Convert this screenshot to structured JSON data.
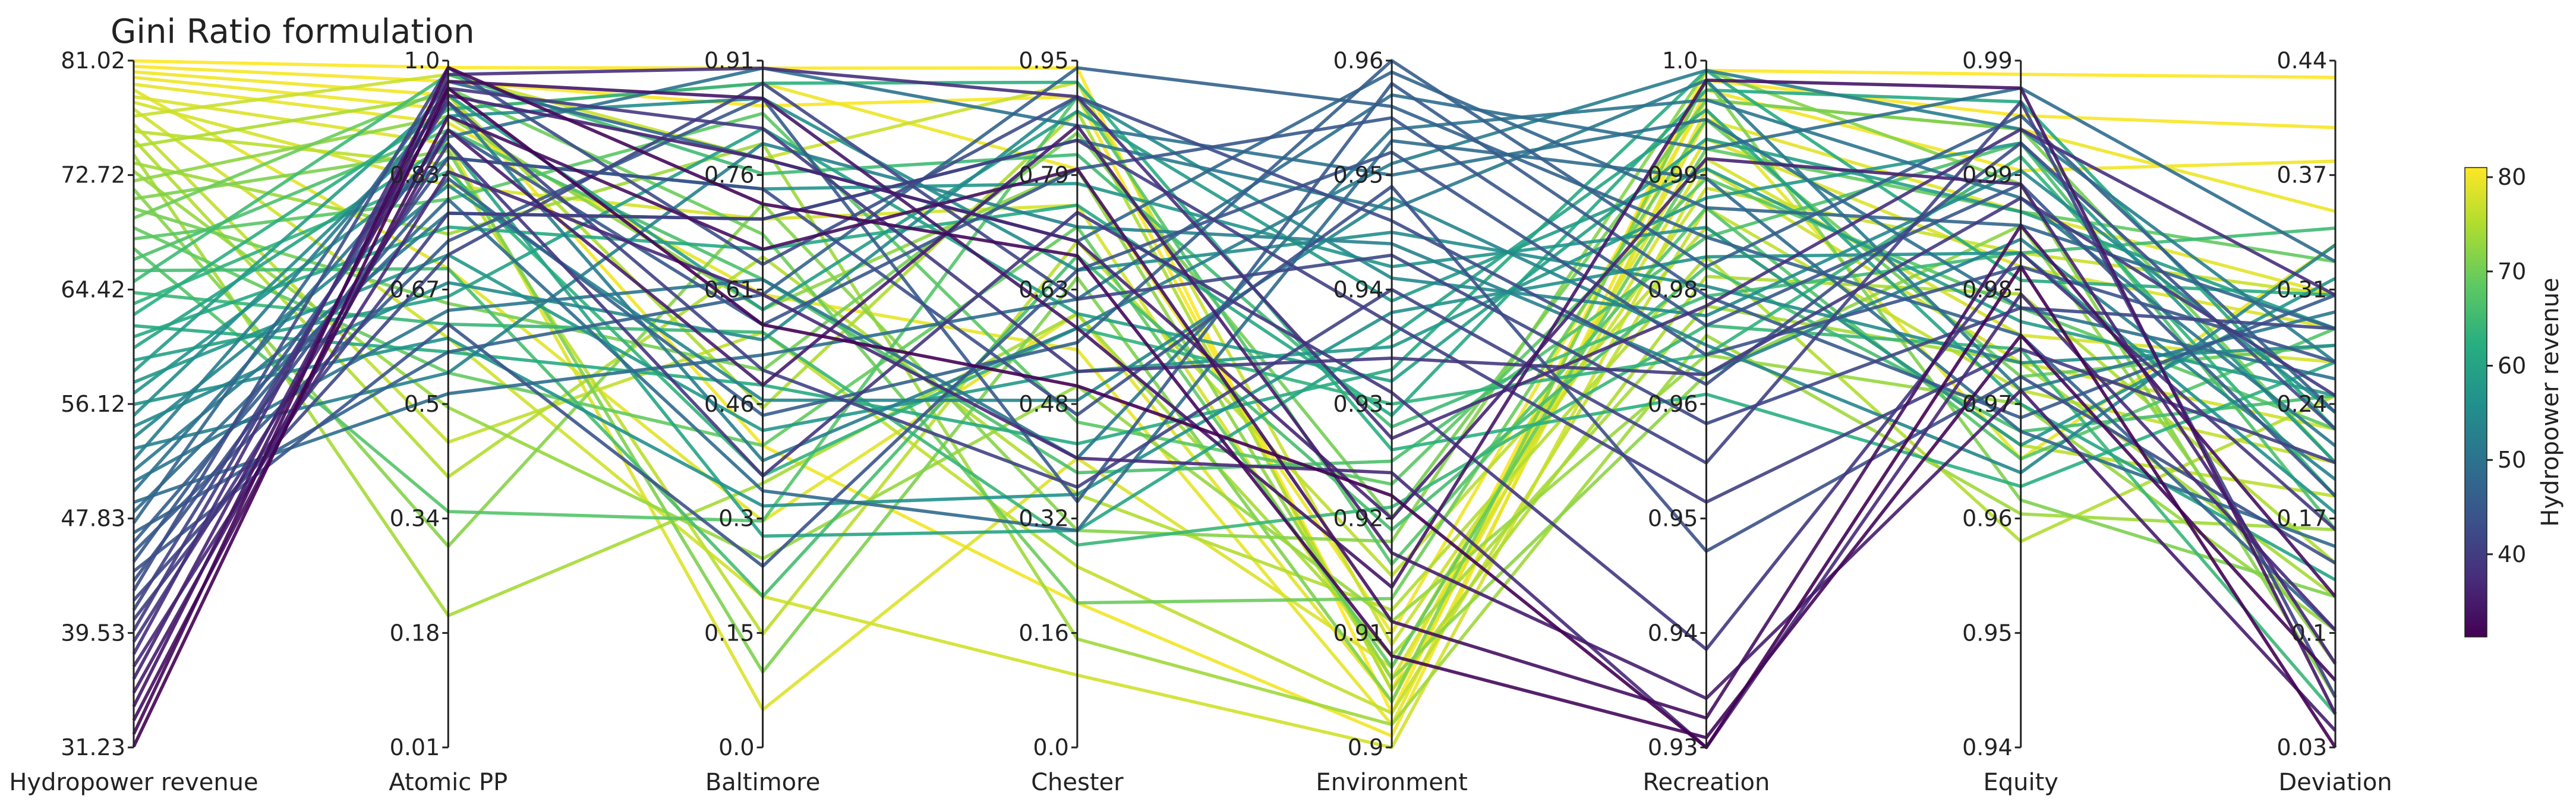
{
  "chart_data": {
    "type": "parallel_coordinates",
    "title": "Gini Ratio formulation",
    "axes": [
      {
        "name": "Hydropower revenue",
        "ticks": [
          "81.02",
          "72.72",
          "64.42",
          "56.12",
          "47.83",
          "39.53",
          "31.23"
        ],
        "range": [
          31.23,
          81.02
        ]
      },
      {
        "name": "Atomic PP",
        "ticks": [
          "1.0",
          "0.83",
          "0.67",
          "0.5",
          "0.34",
          "0.18",
          "0.01"
        ],
        "range": [
          0.01,
          1.0
        ]
      },
      {
        "name": "Baltimore",
        "ticks": [
          "0.91",
          "0.76",
          "0.61",
          "0.46",
          "0.3",
          "0.15",
          "0.0"
        ],
        "range": [
          0.0,
          0.91
        ]
      },
      {
        "name": "Chester",
        "ticks": [
          "0.95",
          "0.79",
          "0.63",
          "0.48",
          "0.32",
          "0.16",
          "0.0"
        ],
        "range": [
          0.0,
          0.95
        ]
      },
      {
        "name": "Environment",
        "ticks": [
          "0.96",
          "0.95",
          "0.94",
          "0.93",
          "0.92",
          "0.91",
          "0.9"
        ],
        "range": [
          0.9,
          0.96
        ]
      },
      {
        "name": "Recreation",
        "ticks": [
          "1.0",
          "0.99",
          "0.98",
          "0.96",
          "0.95",
          "0.94",
          "0.93"
        ],
        "range": [
          0.93,
          1.0
        ]
      },
      {
        "name": "Equity",
        "ticks": [
          "0.99",
          "0.99",
          "0.98",
          "0.97",
          "0.96",
          "0.95",
          "0.94"
        ],
        "range": [
          0.94,
          0.99
        ]
      },
      {
        "name": "Deviation",
        "ticks": [
          "0.44",
          "0.37",
          "0.31",
          "0.24",
          "0.17",
          "0.1",
          "0.03"
        ],
        "range": [
          0.03,
          0.44
        ]
      }
    ],
    "colorbar": {
      "label": "Hydropower revenue",
      "colormap": "viridis",
      "range": [
        31.23,
        81.02
      ],
      "ticks": [
        "40",
        "50",
        "60",
        "70",
        "80"
      ]
    },
    "series": [
      {
        "values": [
          81.0,
          0.99,
          0.9,
          0.94,
          0.903,
          0.999,
          0.989,
          0.43
        ]
      },
      {
        "values": [
          80.6,
          0.97,
          0.85,
          0.9,
          0.905,
          0.998,
          0.986,
          0.4
        ]
      },
      {
        "values": [
          80.2,
          0.95,
          0.4,
          0.2,
          0.901,
          0.997,
          0.982,
          0.38
        ]
      },
      {
        "values": [
          79.8,
          0.93,
          0.88,
          0.8,
          0.91,
          0.996,
          0.985,
          0.35
        ]
      },
      {
        "values": [
          79.3,
          0.91,
          0.6,
          0.55,
          0.902,
          0.995,
          0.961,
          0.33
        ]
      },
      {
        "values": [
          78.9,
          0.7,
          0.3,
          0.6,
          0.904,
          0.994,
          0.979,
          0.3
        ]
      },
      {
        "values": [
          78.4,
          0.88,
          0.05,
          0.4,
          0.907,
          0.992,
          0.975,
          0.28
        ]
      },
      {
        "values": [
          78.0,
          0.82,
          0.7,
          0.75,
          0.906,
          0.99,
          0.97,
          0.26
        ]
      },
      {
        "values": [
          77.5,
          0.6,
          0.2,
          0.1,
          0.9,
          0.989,
          0.968,
          0.22
        ]
      },
      {
        "values": [
          77.0,
          0.98,
          0.78,
          0.92,
          0.909,
          0.987,
          0.976,
          0.3
        ]
      },
      {
        "values": [
          76.4,
          0.45,
          0.55,
          0.25,
          0.903,
          0.985,
          0.966,
          0.2
        ]
      },
      {
        "values": [
          75.9,
          0.85,
          0.15,
          0.7,
          0.915,
          0.983,
          0.962,
          0.18
        ]
      },
      {
        "values": [
          75.3,
          0.4,
          0.65,
          0.35,
          0.912,
          0.98,
          0.955,
          0.24
        ]
      },
      {
        "values": [
          74.8,
          0.95,
          0.45,
          0.88,
          0.905,
          0.978,
          0.973,
          0.14
        ]
      },
      {
        "values": [
          74.2,
          0.2,
          0.35,
          0.6,
          0.908,
          0.975,
          0.968,
          0.12
        ]
      },
      {
        "values": [
          73.6,
          0.75,
          0.8,
          0.15,
          0.902,
          0.972,
          0.957,
          0.16
        ]
      },
      {
        "values": [
          73.0,
          0.5,
          0.25,
          0.5,
          0.911,
          0.97,
          0.965,
          0.1
        ]
      },
      {
        "values": [
          72.3,
          0.92,
          0.58,
          0.8,
          0.906,
          0.968,
          0.978,
          0.08
        ]
      },
      {
        "values": [
          71.7,
          0.3,
          0.72,
          0.3,
          0.918,
          0.999,
          0.981,
          0.06
        ]
      },
      {
        "values": [
          71.0,
          0.87,
          0.1,
          0.65,
          0.904,
          0.998,
          0.958,
          0.12
        ]
      },
      {
        "values": [
          70.3,
          0.65,
          0.5,
          0.85,
          0.92,
          0.996,
          0.985,
          0.2
        ]
      },
      {
        "values": [
          69.6,
          0.96,
          0.68,
          0.2,
          0.913,
          0.994,
          0.967,
          0.27
        ]
      },
      {
        "values": [
          68.9,
          0.55,
          0.4,
          0.72,
          0.907,
          0.991,
          0.979,
          0.32
        ]
      },
      {
        "values": [
          68.1,
          0.8,
          0.84,
          0.45,
          0.923,
          0.988,
          0.972,
          0.22
        ]
      },
      {
        "values": [
          67.4,
          0.35,
          0.3,
          0.9,
          0.916,
          0.985,
          0.961,
          0.28
        ]
      },
      {
        "values": [
          66.6,
          0.9,
          0.62,
          0.38,
          0.925,
          0.982,
          0.984,
          0.16
        ]
      },
      {
        "values": [
          65.8,
          0.7,
          0.2,
          0.68,
          0.919,
          0.979,
          0.963,
          0.24
        ]
      },
      {
        "values": [
          65.0,
          0.98,
          0.76,
          0.82,
          0.928,
          0.976,
          0.976,
          0.34
        ]
      },
      {
        "values": [
          64.2,
          0.62,
          0.55,
          0.28,
          0.921,
          0.973,
          0.969,
          0.05
        ]
      },
      {
        "values": [
          63.4,
          0.84,
          0.36,
          0.58,
          0.93,
          0.97,
          0.983,
          0.18
        ]
      },
      {
        "values": [
          62.6,
          0.93,
          0.88,
          0.92,
          0.926,
          0.966,
          0.959,
          0.26
        ]
      },
      {
        "values": [
          61.8,
          0.58,
          0.48,
          0.42,
          0.933,
          0.999,
          0.974,
          0.3
        ]
      },
      {
        "values": [
          61.0,
          0.76,
          0.66,
          0.75,
          0.929,
          0.997,
          0.987,
          0.22
        ]
      },
      {
        "values": [
          60.2,
          0.88,
          0.28,
          0.3,
          0.936,
          0.995,
          0.965,
          0.13
        ]
      },
      {
        "values": [
          59.3,
          0.66,
          0.82,
          0.6,
          0.932,
          0.992,
          0.979,
          0.28
        ]
      },
      {
        "values": [
          58.5,
          0.95,
          0.58,
          0.88,
          0.939,
          0.989,
          0.971,
          0.24
        ]
      },
      {
        "values": [
          57.7,
          0.72,
          0.42,
          0.52,
          0.935,
          0.986,
          0.984,
          0.2
        ]
      },
      {
        "values": [
          56.9,
          0.86,
          0.74,
          0.78,
          0.942,
          0.983,
          0.962,
          0.31
        ]
      },
      {
        "values": [
          56.1,
          0.6,
          0.32,
          0.35,
          0.938,
          0.98,
          0.976,
          0.17
        ]
      },
      {
        "values": [
          55.3,
          0.92,
          0.86,
          0.66,
          0.945,
          0.977,
          0.968,
          0.27
        ]
      },
      {
        "values": [
          54.5,
          0.68,
          0.54,
          0.9,
          0.941,
          0.974,
          0.982,
          0.23
        ]
      },
      {
        "values": [
          53.7,
          0.82,
          0.46,
          0.48,
          0.948,
          0.971,
          0.96,
          0.33
        ]
      },
      {
        "values": [
          52.9,
          0.55,
          0.8,
          0.72,
          0.944,
          0.968,
          0.977,
          0.19
        ]
      },
      {
        "values": [
          52.1,
          0.94,
          0.38,
          0.58,
          0.951,
          0.999,
          0.985,
          0.26
        ]
      },
      {
        "values": [
          51.3,
          0.78,
          0.7,
          0.84,
          0.947,
          0.998,
          0.966,
          0.29
        ]
      },
      {
        "values": [
          50.5,
          0.64,
          0.62,
          0.4,
          0.954,
          0.996,
          0.98,
          0.21
        ]
      },
      {
        "values": [
          49.8,
          0.89,
          0.9,
          0.86,
          0.95,
          0.994,
          0.972,
          0.25
        ]
      },
      {
        "values": [
          49.0,
          0.52,
          0.52,
          0.62,
          0.957,
          0.991,
          0.988,
          0.32
        ]
      },
      {
        "values": [
          48.3,
          0.8,
          0.34,
          0.3,
          0.953,
          0.988,
          0.963,
          0.15
        ]
      },
      {
        "values": [
          47.5,
          0.97,
          0.78,
          0.7,
          0.959,
          0.985,
          0.978,
          0.28
        ]
      },
      {
        "values": [
          46.8,
          0.58,
          0.6,
          0.94,
          0.956,
          0.982,
          0.97,
          0.1
        ]
      },
      {
        "values": [
          46.1,
          0.83,
          0.44,
          0.56,
          0.96,
          0.979,
          0.986,
          0.23
        ]
      },
      {
        "values": [
          45.4,
          0.74,
          0.86,
          0.34,
          0.958,
          0.976,
          0.964,
          0.3
        ]
      },
      {
        "values": [
          44.7,
          0.9,
          0.56,
          0.8,
          0.955,
          0.973,
          0.981,
          0.18
        ]
      },
      {
        "values": [
          44.0,
          0.62,
          0.24,
          0.66,
          0.952,
          0.97,
          0.975,
          0.26
        ]
      },
      {
        "values": [
          43.3,
          0.86,
          0.74,
          0.46,
          0.949,
          0.95,
          0.967,
          0.14
        ]
      },
      {
        "values": [
          42.6,
          0.99,
          0.64,
          0.9,
          0.946,
          0.967,
          0.984,
          0.22
        ]
      },
      {
        "values": [
          41.9,
          0.72,
          0.88,
          0.62,
          0.943,
          0.963,
          0.972,
          0.28
        ]
      },
      {
        "values": [
          41.2,
          0.94,
          0.5,
          0.36,
          0.94,
          0.959,
          0.987,
          0.06
        ]
      },
      {
        "values": [
          40.5,
          0.78,
          0.7,
          0.84,
          0.937,
          0.955,
          0.969,
          0.2
        ]
      },
      {
        "values": [
          39.7,
          0.96,
          0.82,
          0.52,
          0.934,
          0.968,
          0.98,
          0.24
        ]
      },
      {
        "values": [
          38.9,
          0.88,
          0.36,
          0.74,
          0.931,
          0.94,
          0.976,
          0.16
        ]
      },
      {
        "values": [
          38.0,
          0.98,
          0.9,
          0.9,
          0.927,
          0.975,
          0.985,
          0.3
        ]
      },
      {
        "values": [
          37.1,
          0.84,
          0.6,
          0.4,
          0.924,
          0.93,
          0.973,
          0.1
        ]
      },
      {
        "values": [
          36.2,
          0.95,
          0.78,
          0.7,
          0.92,
          0.99,
          0.981,
          0.08
        ]
      },
      {
        "values": [
          35.2,
          0.9,
          0.48,
          0.86,
          0.917,
          0.935,
          0.966,
          0.04
        ]
      },
      {
        "values": [
          34.2,
          0.97,
          0.86,
          0.58,
          0.914,
          0.998,
          0.988,
          0.05
        ]
      },
      {
        "values": [
          33.2,
          0.92,
          0.66,
          0.8,
          0.911,
          0.933,
          0.978,
          0.12
        ]
      },
      {
        "values": [
          32.2,
          0.99,
          0.72,
          0.68,
          0.908,
          0.931,
          0.97,
          0.07
        ]
      },
      {
        "values": [
          31.3,
          0.96,
          0.56,
          0.5,
          0.922,
          0.93,
          0.975,
          0.03
        ]
      }
    ]
  }
}
